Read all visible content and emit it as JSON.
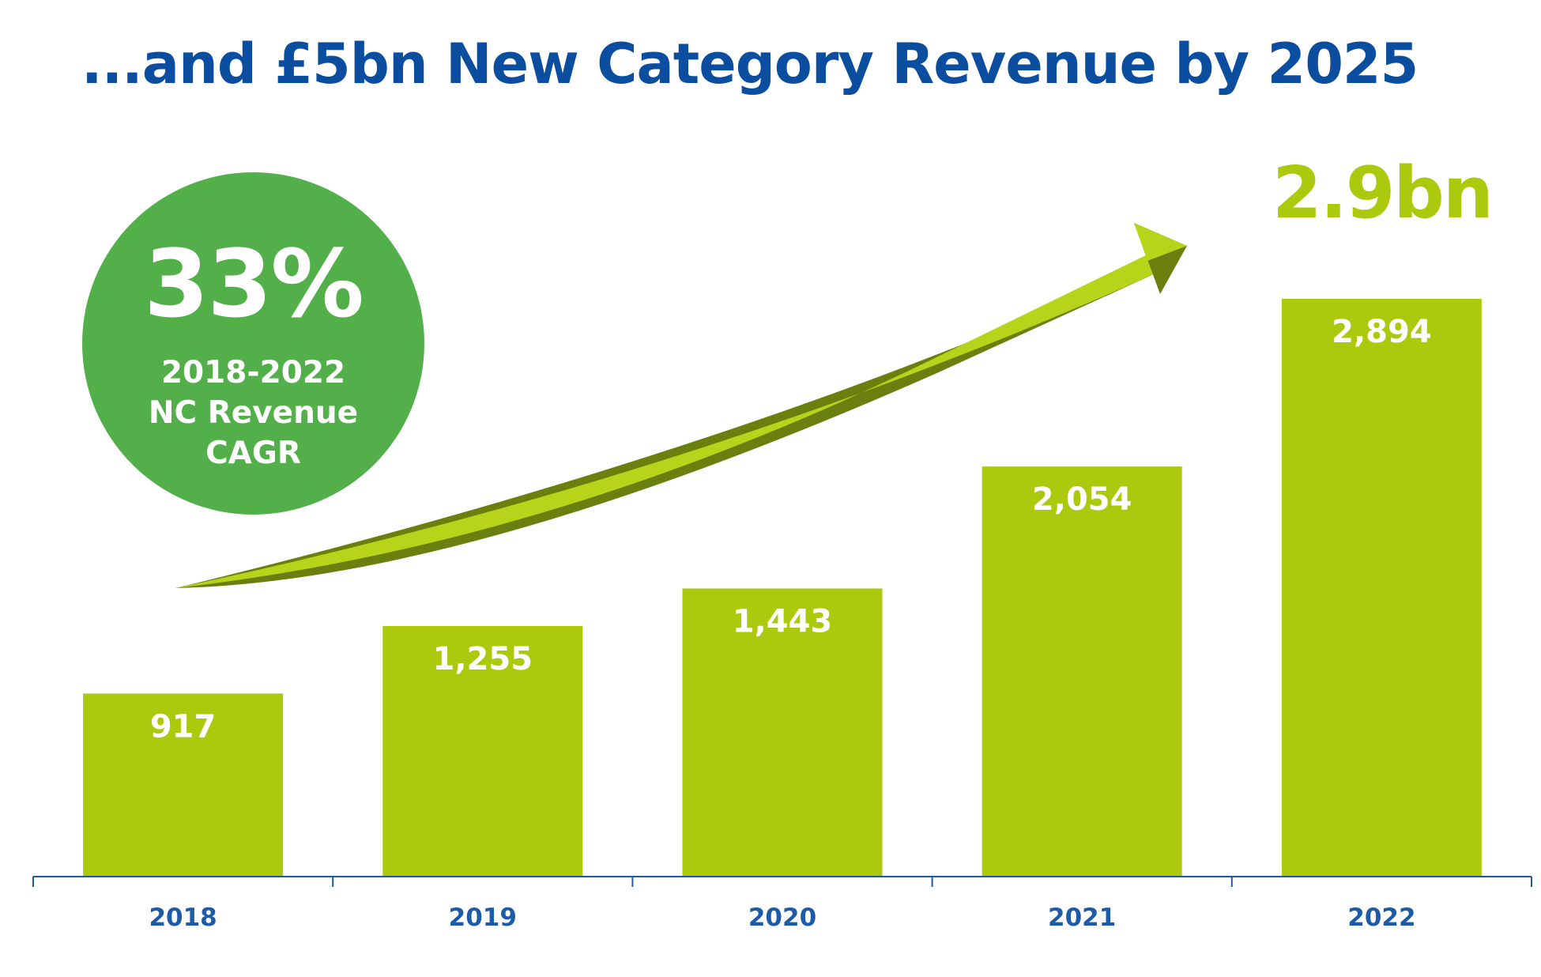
{
  "title": "...and £5bn New Category Revenue by 2025",
  "callout": {
    "value": "33%",
    "line1": "2018-2022",
    "line2": "NC Revenue",
    "line3": "CAGR"
  },
  "highlight": "2.9bn",
  "colors": {
    "title": "#0b4d9e",
    "bar": "#adc90e",
    "circle": "#52af4a",
    "axis": "#1d5ba8",
    "arrow_light": "#b7d41a",
    "arrow_dark": "#6b7f0e",
    "label": "#ffffff"
  },
  "chart_data": {
    "type": "bar",
    "categories": [
      "2018",
      "2019",
      "2020",
      "2021",
      "2022"
    ],
    "values": [
      917,
      1255,
      1443,
      2054,
      2894
    ],
    "value_labels": [
      "917",
      "1,255",
      "1,443",
      "2,054",
      "2,894"
    ],
    "title": "",
    "xlabel": "",
    "ylabel": "",
    "ylim": [
      0,
      2894
    ],
    "grid": false
  }
}
